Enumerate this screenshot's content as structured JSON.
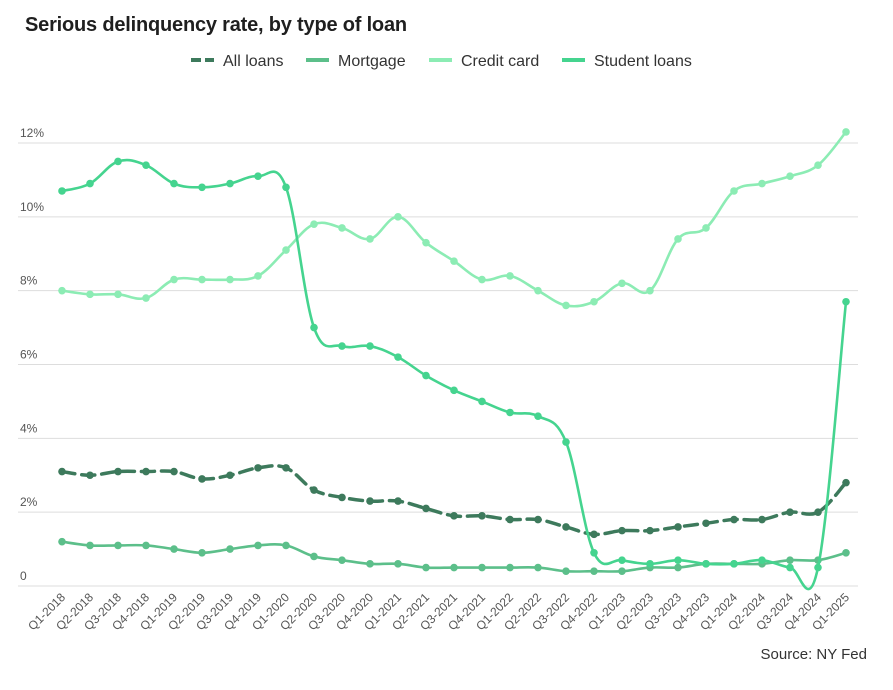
{
  "chart_data": {
    "type": "line",
    "title": "Serious delinquency rate, by type of loan",
    "source": "Source: NY Fed",
    "categories": [
      "Q1-2018",
      "Q2-2018",
      "Q3-2018",
      "Q4-2018",
      "Q1-2019",
      "Q2-2019",
      "Q3-2019",
      "Q4-2019",
      "Q1-2020",
      "Q2-2020",
      "Q3-2020",
      "Q4-2020",
      "Q1-2021",
      "Q2-2021",
      "Q3-2021",
      "Q4-2021",
      "Q1-2022",
      "Q2-2022",
      "Q3-2022",
      "Q4-2022",
      "Q1-2023",
      "Q2-2023",
      "Q3-2023",
      "Q4-2023",
      "Q1-2024",
      "Q2-2024",
      "Q3-2024",
      "Q4-2024",
      "Q1-2025"
    ],
    "x_tick_labels": [
      "Q1-2018",
      "Q2-2018",
      "Q3-2018",
      "Q4-2018",
      "Q1-2019",
      "Q2-2019",
      "Q3-2019",
      "Q4-2019",
      "Q1-2020",
      "Q2-2020",
      "Q3-2020",
      "Q4-2020",
      "Q1-2021",
      "Q2-2021",
      "Q3-2021",
      "Q4-2021",
      "Q1-2022",
      "Q2-2022",
      "Q3-2022",
      "Q4-2022",
      "Q1-2023",
      "Q2-2023",
      "Q3-2023",
      "Q4-2023",
      "Q1-2024",
      "Q2-2024",
      "Q3-2024",
      "Q4-2024",
      "Q1-2025"
    ],
    "y_ticks": [
      0,
      2,
      4,
      6,
      8,
      10,
      12
    ],
    "y_tick_labels": [
      "0",
      "2%",
      "4%",
      "6%",
      "8%",
      "10%",
      "12%"
    ],
    "ylim": [
      0,
      13
    ],
    "grid": true,
    "legend_position": "top-center",
    "series": [
      {
        "name": "All loans",
        "color": "#3d7a5c",
        "dashed": true,
        "values": [
          3.1,
          3.0,
          3.1,
          3.1,
          3.1,
          2.9,
          3.0,
          3.2,
          3.2,
          2.6,
          2.4,
          2.3,
          2.3,
          2.1,
          1.9,
          1.9,
          1.8,
          1.8,
          1.6,
          1.4,
          1.5,
          1.5,
          1.6,
          1.7,
          1.8,
          1.8,
          2.0,
          2.0,
          2.8
        ]
      },
      {
        "name": "Mortgage",
        "color": "#5cbf8a",
        "dashed": false,
        "values": [
          1.2,
          1.1,
          1.1,
          1.1,
          1.0,
          0.9,
          1.0,
          1.1,
          1.1,
          0.8,
          0.7,
          0.6,
          0.6,
          0.5,
          0.5,
          0.5,
          0.5,
          0.5,
          0.4,
          0.4,
          0.4,
          0.5,
          0.5,
          0.6,
          0.6,
          0.6,
          0.7,
          0.7,
          0.9
        ]
      },
      {
        "name": "Credit card",
        "color": "#8cecb4",
        "dashed": false,
        "values": [
          8.0,
          7.9,
          7.9,
          7.8,
          8.3,
          8.3,
          8.3,
          8.4,
          9.1,
          9.8,
          9.7,
          9.4,
          10.0,
          9.3,
          8.8,
          8.3,
          8.4,
          8.0,
          7.6,
          7.7,
          8.2,
          8.0,
          9.4,
          9.7,
          10.7,
          10.9,
          11.1,
          11.4,
          12.3
        ]
      },
      {
        "name": "Student loans",
        "color": "#45d48f",
        "dashed": false,
        "values": [
          10.7,
          10.9,
          11.5,
          11.4,
          10.9,
          10.8,
          10.9,
          11.1,
          10.8,
          7.0,
          6.5,
          6.5,
          6.2,
          5.7,
          5.3,
          5.0,
          4.7,
          4.6,
          3.9,
          0.9,
          0.7,
          0.6,
          0.7,
          0.6,
          0.6,
          0.7,
          0.5,
          0.5,
          7.7
        ]
      }
    ]
  }
}
